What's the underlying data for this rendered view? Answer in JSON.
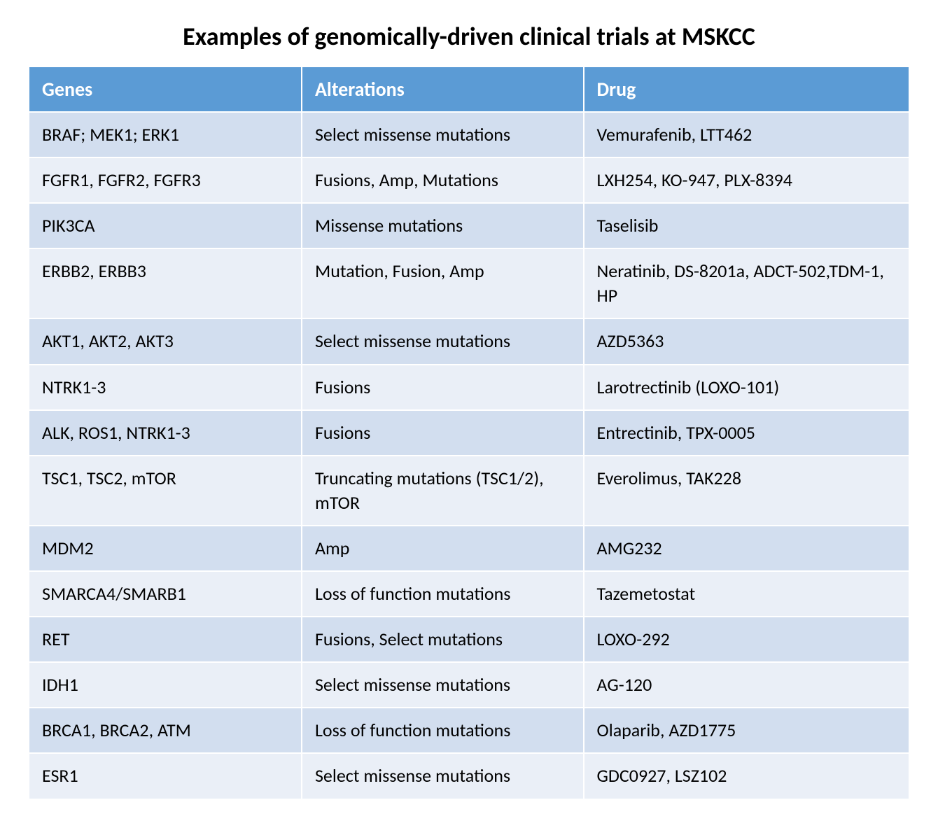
{
  "title": "Examples of genomically-driven clinical trials at MSKCC",
  "table": {
    "type": "table",
    "header_background": "#5b9bd5",
    "header_text_color": "#ffffff",
    "row_odd_color": "#d2deef",
    "row_even_color": "#eaeff7",
    "border_color": "#ffffff",
    "text_color": "#000000",
    "title_fontsize": 36,
    "header_fontsize": 28,
    "cell_fontsize": 26,
    "column_widths_pct": [
      31,
      32,
      37
    ],
    "columns": [
      "Genes",
      "Alterations",
      "Drug"
    ],
    "rows": [
      {
        "genes": "BRAF; MEK1; ERK1",
        "alterations": "Select missense mutations",
        "drug": "Vemurafenib, LTT462"
      },
      {
        "genes": "FGFR1, FGFR2, FGFR3",
        "alterations": "Fusions, Amp, Mutations",
        "drug": "LXH254, KO-947, PLX-8394"
      },
      {
        "genes": "PIK3CA",
        "alterations": "Missense mutations",
        "drug": "Taselisib"
      },
      {
        "genes": "ERBB2, ERBB3",
        "alterations": "Mutation, Fusion, Amp",
        "drug": "Neratinib, DS-8201a, ADCT-502,TDM-1, HP"
      },
      {
        "genes": "AKT1, AKT2, AKT3",
        "alterations": "Select missense mutations",
        "drug": "AZD5363"
      },
      {
        "genes": "NTRK1-3",
        "alterations": "Fusions",
        "drug": "Larotrectinib (LOXO-101)"
      },
      {
        "genes": "ALK, ROS1, NTRK1-3",
        "alterations": "Fusions",
        "drug": "Entrectinib, TPX-0005"
      },
      {
        "genes": "TSC1, TSC2, mTOR",
        "alterations": "Truncating mutations (TSC1/2), mTOR",
        "drug": "Everolimus, TAK228"
      },
      {
        "genes": "MDM2",
        "alterations": "Amp",
        "drug": "AMG232"
      },
      {
        "genes": "SMARCA4/SMARB1",
        "alterations": "Loss of function mutations",
        "drug": "Tazemetostat"
      },
      {
        "genes": "RET",
        "alterations": "Fusions, Select mutations",
        "drug": "LOXO-292"
      },
      {
        "genes": "IDH1",
        "alterations": "Select missense mutations",
        "drug": "AG-120"
      },
      {
        "genes": "BRCA1, BRCA2, ATM",
        "alterations": "Loss of function mutations",
        "drug": "Olaparib, AZD1775"
      },
      {
        "genes": "ESR1",
        "alterations": "Select missense mutations",
        "drug": "GDC0927, LSZ102"
      }
    ]
  }
}
